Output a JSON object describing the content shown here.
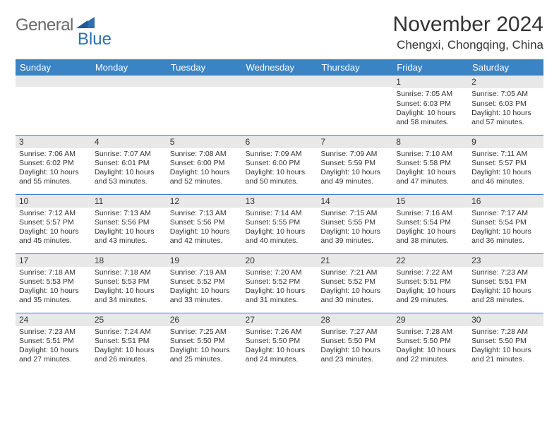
{
  "logo": {
    "text_gray": "General",
    "text_blue": "Blue",
    "triangle_color": "#2f6fb0"
  },
  "header": {
    "month_title": "November 2024",
    "location": "Chengxi, Chongqing, China"
  },
  "colors": {
    "header_bar": "#3a83c5",
    "daynum_bg": "#e8e8e8",
    "week_divider": "#3a83c5",
    "text": "#333333",
    "background": "#ffffff"
  },
  "typography": {
    "month_title_fontsize": 30,
    "location_fontsize": 17,
    "dow_fontsize": 13,
    "daynum_fontsize": 12,
    "body_fontsize": 10.5,
    "font_family": "Arial"
  },
  "days_of_week": [
    "Sunday",
    "Monday",
    "Tuesday",
    "Wednesday",
    "Thursday",
    "Friday",
    "Saturday"
  ],
  "weeks": [
    [
      {
        "day": null
      },
      {
        "day": null
      },
      {
        "day": null
      },
      {
        "day": null
      },
      {
        "day": null
      },
      {
        "day": 1,
        "sunrise": "7:05 AM",
        "sunset": "6:03 PM",
        "daylight": "10 hours and 58 minutes."
      },
      {
        "day": 2,
        "sunrise": "7:05 AM",
        "sunset": "6:03 PM",
        "daylight": "10 hours and 57 minutes."
      }
    ],
    [
      {
        "day": 3,
        "sunrise": "7:06 AM",
        "sunset": "6:02 PM",
        "daylight": "10 hours and 55 minutes."
      },
      {
        "day": 4,
        "sunrise": "7:07 AM",
        "sunset": "6:01 PM",
        "daylight": "10 hours and 53 minutes."
      },
      {
        "day": 5,
        "sunrise": "7:08 AM",
        "sunset": "6:00 PM",
        "daylight": "10 hours and 52 minutes."
      },
      {
        "day": 6,
        "sunrise": "7:09 AM",
        "sunset": "6:00 PM",
        "daylight": "10 hours and 50 minutes."
      },
      {
        "day": 7,
        "sunrise": "7:09 AM",
        "sunset": "5:59 PM",
        "daylight": "10 hours and 49 minutes."
      },
      {
        "day": 8,
        "sunrise": "7:10 AM",
        "sunset": "5:58 PM",
        "daylight": "10 hours and 47 minutes."
      },
      {
        "day": 9,
        "sunrise": "7:11 AM",
        "sunset": "5:57 PM",
        "daylight": "10 hours and 46 minutes."
      }
    ],
    [
      {
        "day": 10,
        "sunrise": "7:12 AM",
        "sunset": "5:57 PM",
        "daylight": "10 hours and 45 minutes."
      },
      {
        "day": 11,
        "sunrise": "7:13 AM",
        "sunset": "5:56 PM",
        "daylight": "10 hours and 43 minutes."
      },
      {
        "day": 12,
        "sunrise": "7:13 AM",
        "sunset": "5:56 PM",
        "daylight": "10 hours and 42 minutes."
      },
      {
        "day": 13,
        "sunrise": "7:14 AM",
        "sunset": "5:55 PM",
        "daylight": "10 hours and 40 minutes."
      },
      {
        "day": 14,
        "sunrise": "7:15 AM",
        "sunset": "5:55 PM",
        "daylight": "10 hours and 39 minutes."
      },
      {
        "day": 15,
        "sunrise": "7:16 AM",
        "sunset": "5:54 PM",
        "daylight": "10 hours and 38 minutes."
      },
      {
        "day": 16,
        "sunrise": "7:17 AM",
        "sunset": "5:54 PM",
        "daylight": "10 hours and 36 minutes."
      }
    ],
    [
      {
        "day": 17,
        "sunrise": "7:18 AM",
        "sunset": "5:53 PM",
        "daylight": "10 hours and 35 minutes."
      },
      {
        "day": 18,
        "sunrise": "7:18 AM",
        "sunset": "5:53 PM",
        "daylight": "10 hours and 34 minutes."
      },
      {
        "day": 19,
        "sunrise": "7:19 AM",
        "sunset": "5:52 PM",
        "daylight": "10 hours and 33 minutes."
      },
      {
        "day": 20,
        "sunrise": "7:20 AM",
        "sunset": "5:52 PM",
        "daylight": "10 hours and 31 minutes."
      },
      {
        "day": 21,
        "sunrise": "7:21 AM",
        "sunset": "5:52 PM",
        "daylight": "10 hours and 30 minutes."
      },
      {
        "day": 22,
        "sunrise": "7:22 AM",
        "sunset": "5:51 PM",
        "daylight": "10 hours and 29 minutes."
      },
      {
        "day": 23,
        "sunrise": "7:23 AM",
        "sunset": "5:51 PM",
        "daylight": "10 hours and 28 minutes."
      }
    ],
    [
      {
        "day": 24,
        "sunrise": "7:23 AM",
        "sunset": "5:51 PM",
        "daylight": "10 hours and 27 minutes."
      },
      {
        "day": 25,
        "sunrise": "7:24 AM",
        "sunset": "5:51 PM",
        "daylight": "10 hours and 26 minutes."
      },
      {
        "day": 26,
        "sunrise": "7:25 AM",
        "sunset": "5:50 PM",
        "daylight": "10 hours and 25 minutes."
      },
      {
        "day": 27,
        "sunrise": "7:26 AM",
        "sunset": "5:50 PM",
        "daylight": "10 hours and 24 minutes."
      },
      {
        "day": 28,
        "sunrise": "7:27 AM",
        "sunset": "5:50 PM",
        "daylight": "10 hours and 23 minutes."
      },
      {
        "day": 29,
        "sunrise": "7:28 AM",
        "sunset": "5:50 PM",
        "daylight": "10 hours and 22 minutes."
      },
      {
        "day": 30,
        "sunrise": "7:28 AM",
        "sunset": "5:50 PM",
        "daylight": "10 hours and 21 minutes."
      }
    ]
  ],
  "labels": {
    "sunrise": "Sunrise:",
    "sunset": "Sunset:",
    "daylight": "Daylight:"
  }
}
